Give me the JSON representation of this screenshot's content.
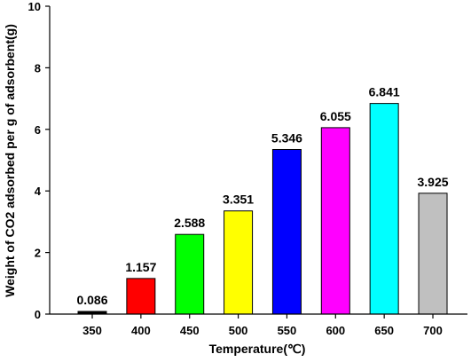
{
  "chart_data": {
    "type": "bar",
    "categories": [
      "350",
      "400",
      "450",
      "500",
      "550",
      "600",
      "650",
      "700"
    ],
    "values": [
      0.086,
      1.157,
      2.588,
      3.351,
      5.346,
      6.055,
      6.841,
      3.925
    ],
    "data_labels": [
      "0.086",
      "1.157",
      "2.588",
      "3.351",
      "5.346",
      "6.055",
      "6.841",
      "3.925"
    ],
    "colors": [
      "#000000",
      "#ff0000",
      "#00ff00",
      "#ffff00",
      "#0000ff",
      "#ff00ff",
      "#00ffff",
      "#c0c0c0"
    ],
    "xlabel": "Temperature(℃)",
    "ylabel": "Weight of CO2 adsorbed per g of adsorbent(g)",
    "ylim": [
      0,
      10
    ],
    "yticks": [
      0,
      2,
      4,
      6,
      8,
      10
    ],
    "grid": false,
    "legend": false
  }
}
